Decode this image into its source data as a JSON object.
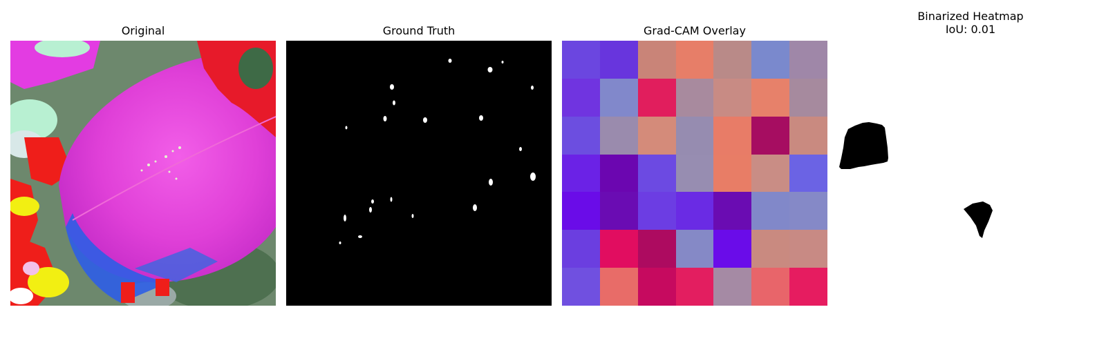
{
  "panels": {
    "original": {
      "title": "Original"
    },
    "ground_truth": {
      "title": "Ground Truth"
    },
    "gradcam": {
      "title": "Grad-CAM Overlay",
      "grid_colors": [
        [
          "#6b46e0",
          "#6835dd",
          "#c98478",
          "#e77e68",
          "#b98a88",
          "#7a89cd",
          "#9f87a8"
        ],
        [
          "#7034e0",
          "#8188cb",
          "#e11e5d",
          "#a88a9e",
          "#c88b84",
          "#e7816a",
          "#a68a9e"
        ],
        [
          "#6c4ee0",
          "#9a8bad",
          "#d48b7a",
          "#968cb0",
          "#e87c67",
          "#a60d61",
          "#c98a80"
        ],
        [
          "#6b22e6",
          "#6b06b0",
          "#6c4ae2",
          "#978db1",
          "#e87d66",
          "#c98d85",
          "#6b63e4"
        ],
        [
          "#6a0ce8",
          "#6a0cb3",
          "#6c3de3",
          "#6a2be4",
          "#6a0cb2",
          "#8188c9",
          "#8589c7"
        ],
        [
          "#6b3ee0",
          "#e10d60",
          "#ad0b60",
          "#8589c6",
          "#6a0ce9",
          "#c98a80",
          "#c88a84"
        ],
        [
          "#7050e0",
          "#e86c68",
          "#c60a5f",
          "#e31e60",
          "#a58aa4",
          "#e8656a",
          "#e61c60"
        ]
      ]
    },
    "binarized": {
      "title_line1": "Binarized Heatmap",
      "title_line2": "IoU: 0.01"
    }
  }
}
